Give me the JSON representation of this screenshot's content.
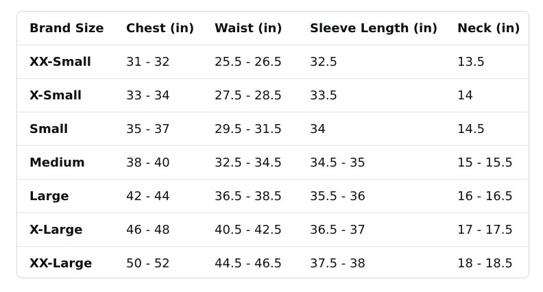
{
  "table": {
    "header": [
      "Brand Size",
      "Chest (in)",
      "Waist (in)",
      "Sleeve Length (in)",
      "Neck (in)"
    ],
    "rows": [
      [
        "XX-Small",
        "31 - 32",
        "25.5 - 26.5",
        "32.5",
        "13.5"
      ],
      [
        "X-Small",
        "33 - 34",
        "27.5 - 28.5",
        "33.5",
        "14"
      ],
      [
        "Small",
        "35 - 37",
        "29.5 - 31.5",
        "34",
        "14.5"
      ],
      [
        "Medium",
        "38 - 40",
        "32.5 - 34.5",
        "34.5 - 35",
        "15 - 15.5"
      ],
      [
        "Large",
        "42 - 44",
        "36.5 - 38.5",
        "35.5 - 36",
        "16 - 16.5"
      ],
      [
        "X-Large",
        "46 - 48",
        "40.5 - 42.5",
        "36.5 - 37",
        "17 - 17.5"
      ],
      [
        "XX-Large",
        "50 - 52",
        "44.5 - 46.5",
        "37.5 - 38",
        "18 - 18.5"
      ]
    ]
  }
}
